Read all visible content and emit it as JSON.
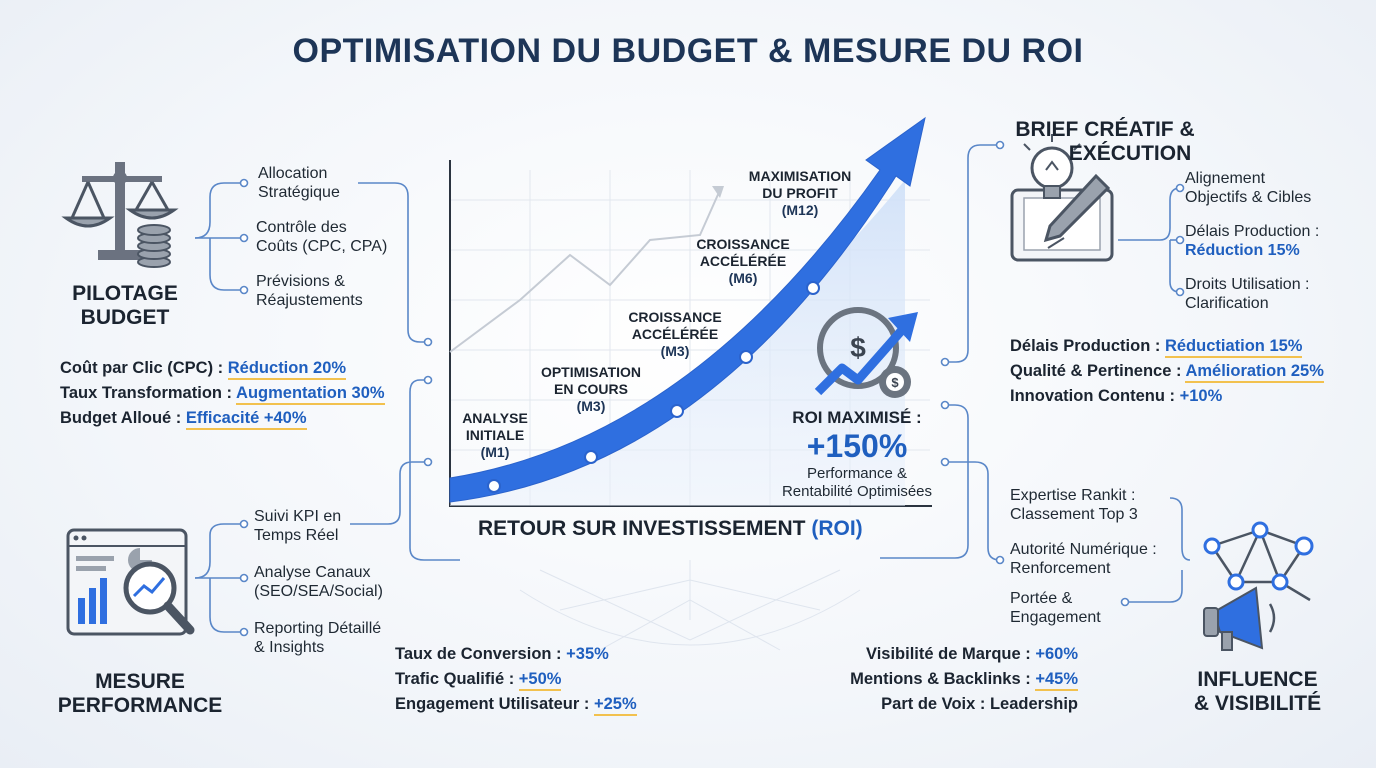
{
  "title": "OPTIMISATION DU BUDGET & MESURE DU ROI",
  "pilotage": {
    "title_l1": "PILOTAGE",
    "title_l2": "BUDGET",
    "items": [
      {
        "l1": "Allocation",
        "l2": "Stratégique"
      },
      {
        "l1": "Contrôle des",
        "l2": "Coûts (CPC, CPA)"
      },
      {
        "l1": "Prévisions &",
        "l2": "Réajustements"
      }
    ],
    "metrics": [
      {
        "label": "Coût par Clic (CPC) :",
        "value": "Réduction 20%"
      },
      {
        "label": "Taux Transformation :",
        "value": "Augmentation 30%"
      },
      {
        "label": "Budget Alloué :",
        "value": "Efficacité +40%"
      }
    ]
  },
  "mesure": {
    "title_l1": "MESURE",
    "title_l2": "PERFORMANCE",
    "items": [
      {
        "l1": "Suivi KPI en",
        "l2": "Temps Réel"
      },
      {
        "l1": "Analyse Canaux",
        "l2": "(SEO/SEA/Social)"
      },
      {
        "l1": "Reporting Détaillé",
        "l2": "& Insights"
      }
    ],
    "metrics": [
      {
        "label": "Taux de Conversion :",
        "value": "+35%"
      },
      {
        "label": "Trafic Qualifié :",
        "value": "+50%"
      },
      {
        "label": "Engagement Utilisateur :",
        "value": "+25%"
      }
    ]
  },
  "brief": {
    "title_l1": "BRIEF CRÉATIF &",
    "title_l2": "EXÉCUTION",
    "items": [
      {
        "l1": "Alignement",
        "l2": "Objectifs & Cibles"
      },
      {
        "l1": "Délais Production :",
        "l2": "Réduction 15%"
      },
      {
        "l1": "Droits Utilisation :",
        "l2": "Clarification"
      }
    ],
    "metrics": [
      {
        "label": "Délais Production :",
        "value": "Réductiation 15%"
      },
      {
        "label": "Qualité & Pertinence :",
        "value": "Amélioration 25%"
      },
      {
        "label": "Innovation Contenu :",
        "value": "+10%"
      }
    ]
  },
  "influence": {
    "title_l1": "INFLUENCE",
    "title_l2": "& VISIBILITÉ",
    "items": [
      {
        "l1": "Expertise Rankit :",
        "l2": "Classement Top 3"
      },
      {
        "l1": "Autorité Numérique :",
        "l2": "Renforcement"
      },
      {
        "l1": "Portée &",
        "l2": "Engagement"
      }
    ],
    "metrics": [
      {
        "label": "Visibilité de Marque :",
        "value": "+60%"
      },
      {
        "label": "Mentions & Backlinks :",
        "value": "+45%"
      },
      {
        "label": "Part de Voix :",
        "value": "Leadership"
      }
    ]
  },
  "chart": {
    "caption_main": "RETOUR SUR INVESTISSEMENT",
    "caption_accent": "(ROI)",
    "stages": [
      {
        "l1": "ANALYSE",
        "l2": "INITIALE",
        "m": "(M1)"
      },
      {
        "l1": "OPTIMISATION",
        "l2": "EN COURS",
        "m": "(M3)"
      },
      {
        "l1": "CROISSANCE",
        "l2": "ACCÉLÉRÉE",
        "m": "(M3)"
      },
      {
        "l1": "CROISSANCE",
        "l2": "ACCÉLÉRÉE",
        "m": "(M6)"
      },
      {
        "l1": "MAXIMISATION",
        "l2": "DU PROFIT",
        "m": "(M12)"
      }
    ],
    "roi": {
      "label": "ROI MAXIMISÉ :",
      "value": "+150%",
      "sub_l1": "Performance &",
      "sub_l2": "Rentabilité Optimisées"
    }
  },
  "colors": {
    "accent": "#1f5fbf",
    "arrow": "#2f6fe0",
    "highlight": "#f2c14e",
    "connector": "#5a87c8"
  },
  "icons": [
    "balance-scale-icon",
    "coins-icon",
    "dashboard-magnifier-icon",
    "lightbulb-pencil-tablet-icon",
    "network-megaphone-icon",
    "dollar-gear-trend-icon"
  ]
}
